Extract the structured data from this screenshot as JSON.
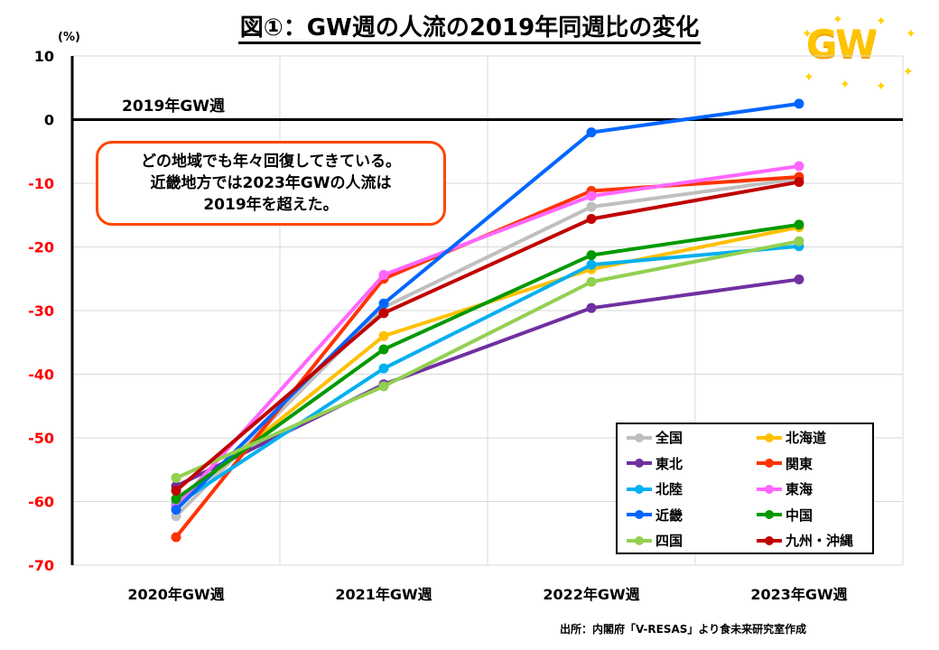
{
  "title": "図①：GW週の人流の2019年同週比の変化",
  "unit_label": "(%)",
  "reference_label": "2019年GW週",
  "annotation": {
    "lines": [
      "どの地域でも年々回復してきている。",
      "近畿地方では2023年GWの人流は",
      "2019年を超えた。"
    ],
    "border_color": "#ff4500"
  },
  "logo_text": "GW",
  "source": "出所：内閣府「V-RESAS」より食未来研究室作成",
  "chart_data": {
    "type": "line",
    "title": "図①：GW週の人流の2019年同週比の変化",
    "xlabel": "",
    "ylabel": "(%)",
    "categories": [
      "2020年GW週",
      "2021年GW週",
      "2022年GW週",
      "2023年GW週"
    ],
    "ylim": [
      -70,
      10
    ],
    "yticks": [
      10,
      0,
      -10,
      -20,
      -30,
      -40,
      -50,
      -60,
      -70
    ],
    "ytick_labels": [
      "10",
      "0",
      "-10",
      "-20",
      "-30",
      "-40",
      "-50",
      "-60",
      "-70"
    ],
    "negative_tick_color": "#ff0000",
    "grid": true,
    "legend_position": "bottom-right",
    "series": [
      {
        "name": "全国",
        "color": "#bfbfbf",
        "values": [
          -62.3,
          -29.5,
          -13.7,
          -9.3
        ]
      },
      {
        "name": "北海道",
        "color": "#ffc000",
        "values": [
          -60.3,
          -34.0,
          -23.5,
          -16.9
        ]
      },
      {
        "name": "東北",
        "color": "#7030a0",
        "values": [
          -57.6,
          -41.6,
          -29.6,
          -25.1
        ]
      },
      {
        "name": "関東",
        "color": "#ff3300",
        "values": [
          -65.6,
          -25.0,
          -11.2,
          -9.0
        ]
      },
      {
        "name": "北陸",
        "color": "#00b0f0",
        "values": [
          -60.5,
          -39.1,
          -22.8,
          -19.9
        ]
      },
      {
        "name": "東海",
        "color": "#ff66ff",
        "values": [
          -60.8,
          -24.4,
          -12.0,
          -7.3
        ]
      },
      {
        "name": "近畿",
        "color": "#0066ff",
        "values": [
          -61.3,
          -28.9,
          -2.0,
          2.5
        ]
      },
      {
        "name": "中国",
        "color": "#009900",
        "values": [
          -59.6,
          -36.1,
          -21.3,
          -16.5
        ]
      },
      {
        "name": "四国",
        "color": "#92d050",
        "values": [
          -56.3,
          -41.9,
          -25.5,
          -19.1
        ]
      },
      {
        "name": "九州・沖縄",
        "color": "#c00000",
        "values": [
          -58.3,
          -30.4,
          -15.6,
          -9.8
        ]
      }
    ]
  }
}
